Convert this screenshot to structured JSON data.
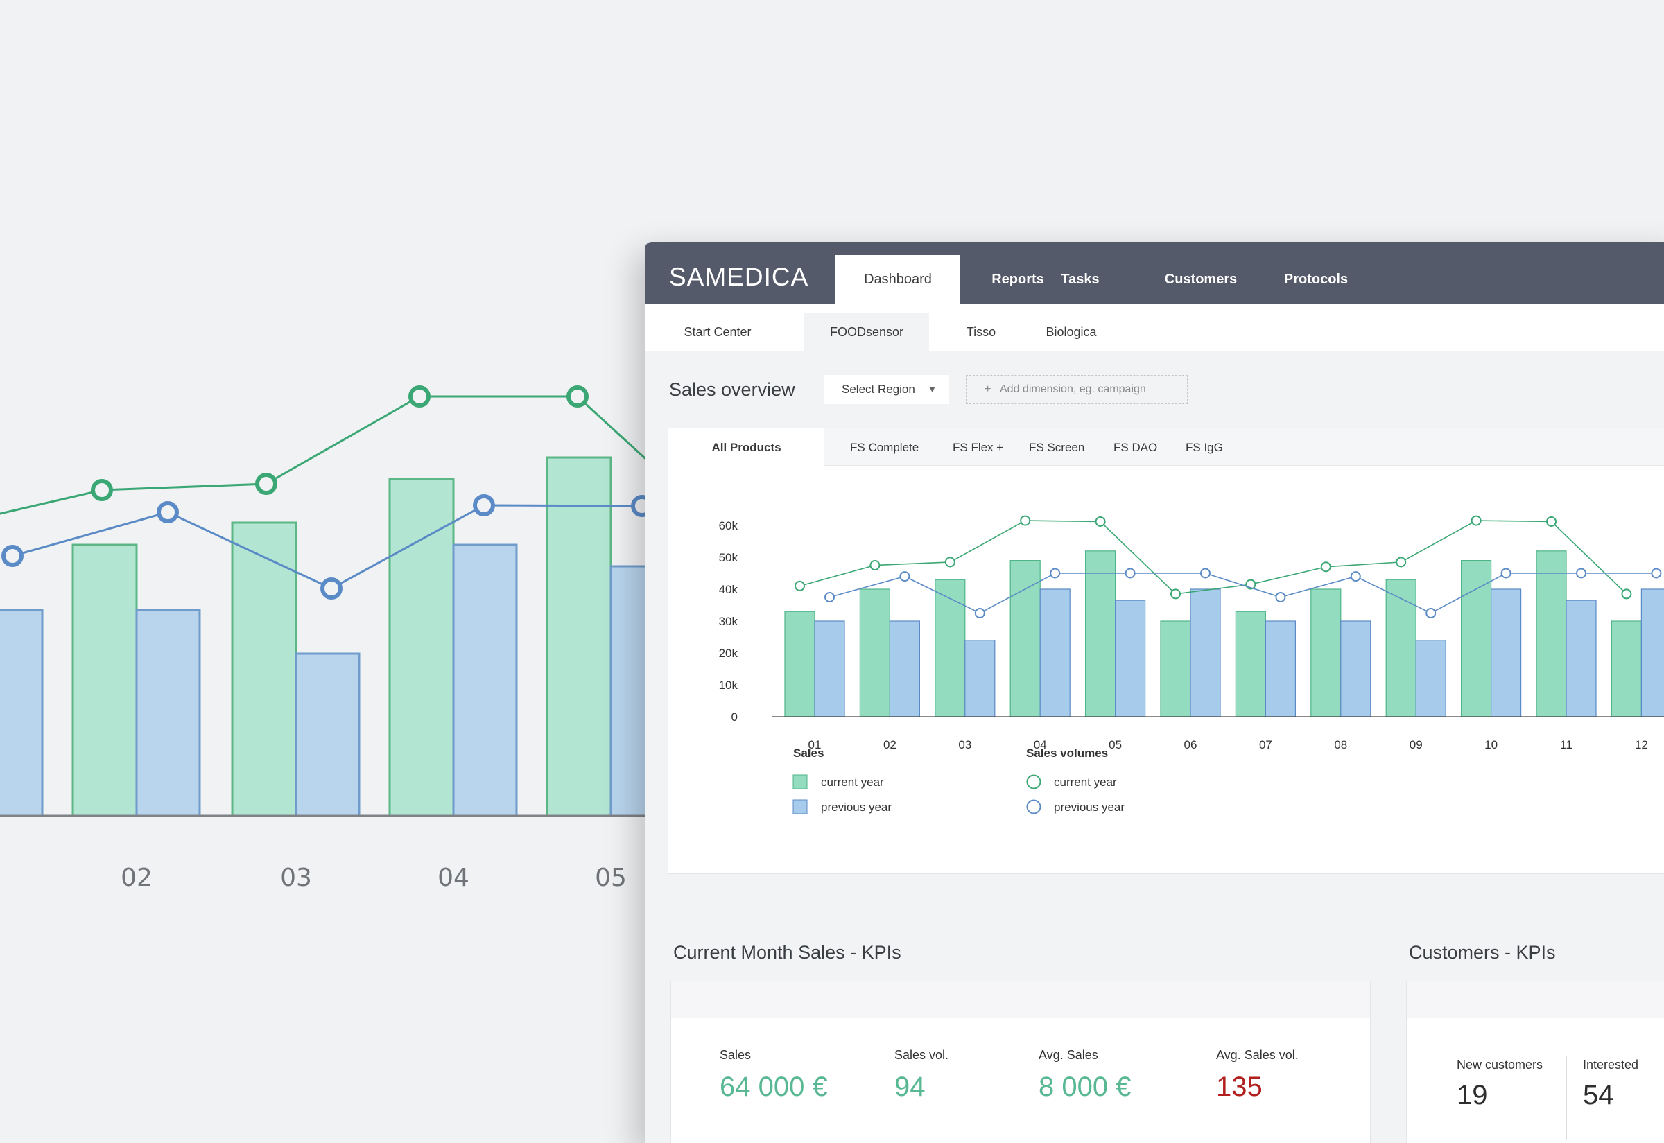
{
  "colors": {
    "topbar": "#545a6a",
    "bar_current": "#93dcc0",
    "bar_previous": "#a7cbea",
    "line_current": "#3aa774",
    "line_previous": "#5b8bc6",
    "value_green": "#58b894",
    "value_red": "#b21f1f"
  },
  "background_chart": {
    "tick_labels": [
      "02",
      "03",
      "04",
      "05"
    ]
  },
  "app": {
    "logo": "SAMEDICA",
    "nav": [
      "Dashboard",
      "Reports",
      "Tasks",
      "Customers",
      "Protocols"
    ],
    "active_nav": "Dashboard",
    "subnav": [
      "Start Center",
      "FOODsensor",
      "Tisso",
      "Biologica"
    ],
    "active_subnav": "FOODsensor"
  },
  "sales_overview": {
    "title": "Sales overview",
    "region_select": "Select Region",
    "region_arrow": "▼",
    "add_dimension_plus": "+",
    "add_dimension": "Add dimension, eg. campaign",
    "product_tabs": [
      "All Products",
      "FS Complete",
      "FS Flex +",
      "FS Screen",
      "FS DAO",
      "FS IgG"
    ],
    "active_product": "All Products"
  },
  "chart_data": {
    "type": "bar",
    "categories": [
      "01",
      "02",
      "03",
      "04",
      "05",
      "06",
      "07",
      "08",
      "09",
      "10",
      "11",
      "12"
    ],
    "y_ticks": [
      "0",
      "10k",
      "20k",
      "30k",
      "40k",
      "50k",
      "60k"
    ],
    "ylim": [
      0,
      60000
    ],
    "grid": false,
    "series": [
      {
        "name": "current year",
        "group": "Sales",
        "kind": "bar",
        "color": "#93dcc0",
        "values": [
          33000,
          40000,
          43000,
          49000,
          52000,
          30000,
          33000,
          40000,
          43000,
          49000,
          52000,
          30000
        ]
      },
      {
        "name": "previous year",
        "group": "Sales",
        "kind": "bar",
        "color": "#a7cbea",
        "values": [
          30000,
          30000,
          24000,
          40000,
          36500,
          40000,
          30000,
          30000,
          24000,
          40000,
          36500,
          40000
        ]
      },
      {
        "name": "current year",
        "group": "Sales volumes",
        "kind": "line",
        "color": "#3aa774",
        "values": [
          41000,
          47500,
          48500,
          61500,
          61200,
          38500,
          41500,
          47000,
          48500,
          61500,
          61200,
          38500
        ]
      },
      {
        "name": "previous year",
        "group": "Sales volumes",
        "kind": "line",
        "color": "#5b8bc6",
        "values": [
          37500,
          44000,
          32500,
          45000,
          45000,
          45000,
          37500,
          44000,
          32500,
          45000,
          45000,
          45000
        ]
      }
    ],
    "legend": {
      "groups": [
        {
          "title": "Sales",
          "items": [
            "current year",
            "previous year"
          ]
        },
        {
          "title": "Sales volumes",
          "items": [
            "current year",
            "previous year"
          ]
        }
      ],
      "placement": "bottom-left"
    }
  },
  "kpis": {
    "sales_title": "Current Month Sales - KPIs",
    "customers_title": "Customers - KPIs",
    "sales": [
      {
        "label": "Sales",
        "value": "64 000 €",
        "tone": "green"
      },
      {
        "label": "Sales vol.",
        "value": "94",
        "tone": "green"
      },
      {
        "label": "Avg. Sales",
        "value": "8 000 €",
        "tone": "green"
      },
      {
        "label": "Avg. Sales vol.",
        "value": "135",
        "tone": "red"
      }
    ],
    "customers": [
      {
        "label": "New customers",
        "value": "19"
      },
      {
        "label": "Interested",
        "value": "54"
      }
    ]
  }
}
